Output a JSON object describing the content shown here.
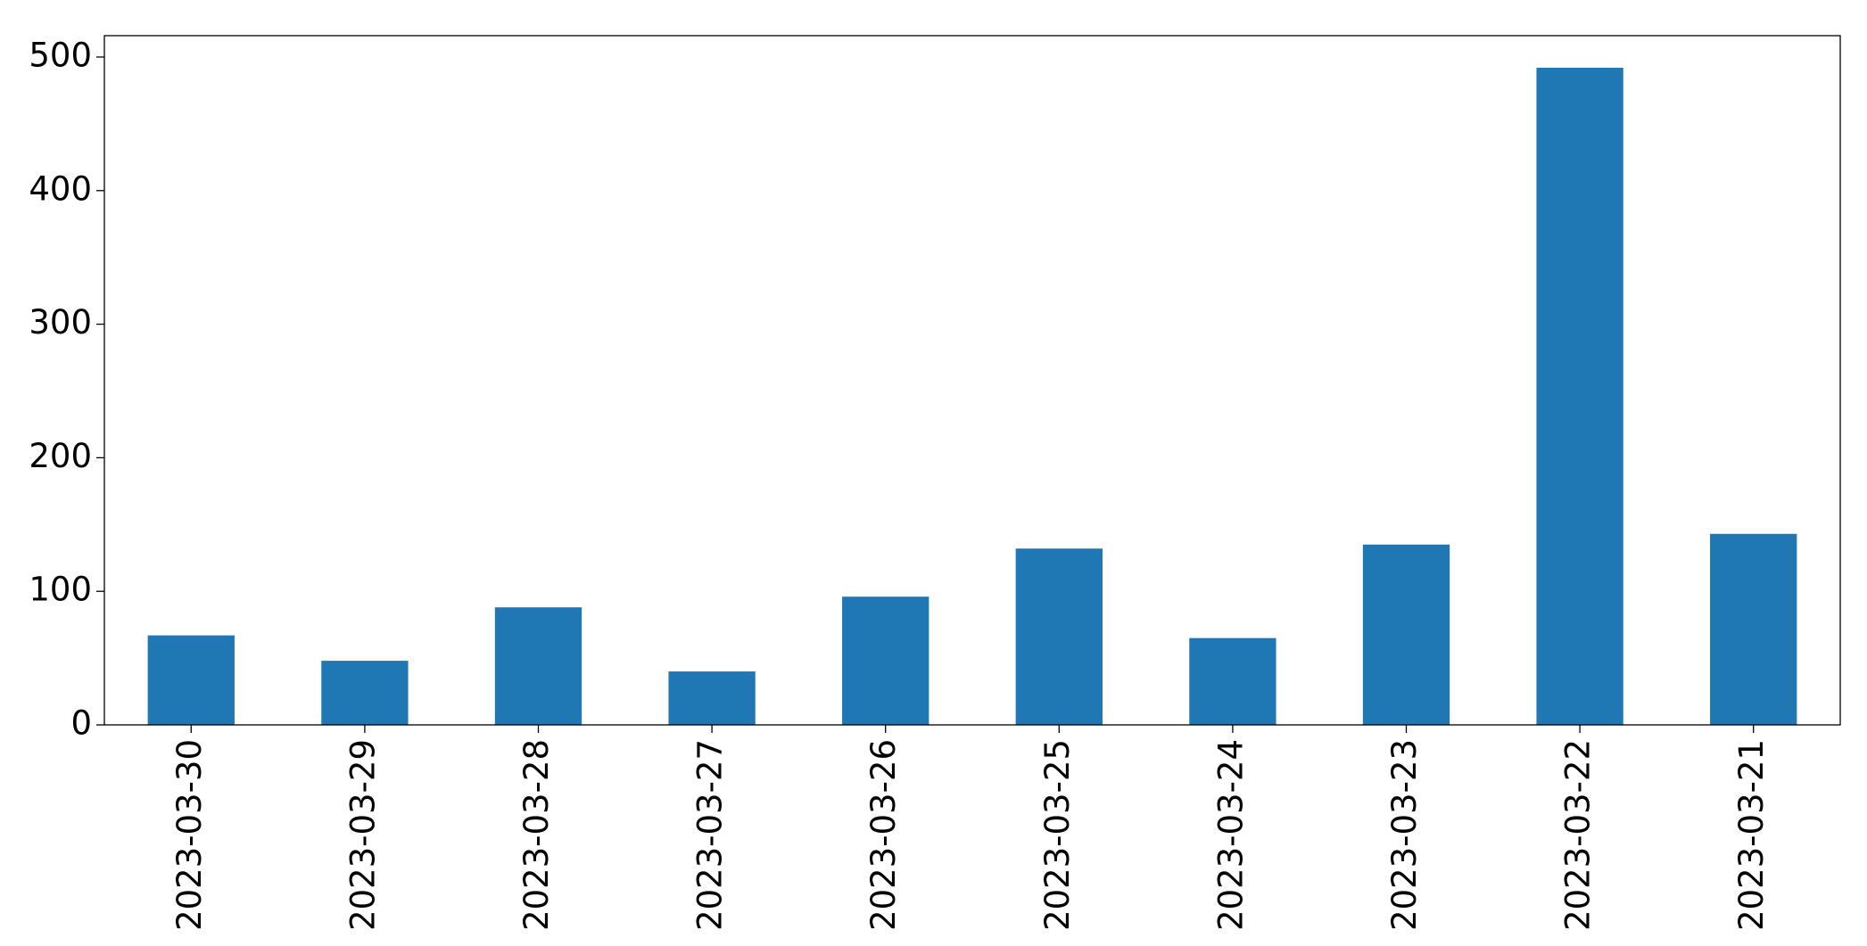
{
  "chart_data": {
    "type": "bar",
    "categories": [
      "2023-03-30",
      "2023-03-29",
      "2023-03-28",
      "2023-03-27",
      "2023-03-26",
      "2023-03-25",
      "2023-03-24",
      "2023-03-23",
      "2023-03-22",
      "2023-03-21"
    ],
    "values": [
      67,
      48,
      88,
      40,
      96,
      132,
      65,
      135,
      492,
      143
    ],
    "color": "#1f77b4",
    "ylim": [
      0,
      516
    ],
    "yticks": [
      0,
      100,
      200,
      300,
      400,
      500
    ],
    "grid": false
  }
}
